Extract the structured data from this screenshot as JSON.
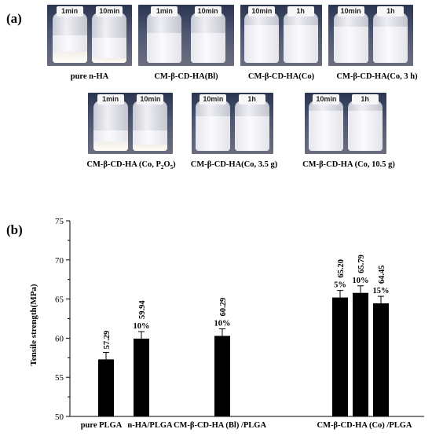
{
  "panel_a": {
    "label": "(a)",
    "photos": [
      {
        "caption": "pure  n-HA",
        "vials": [
          {
            "time": "1min",
            "sediment": 0.22,
            "liquid": 0.55
          },
          {
            "time": "10min",
            "sediment": 0.1,
            "liquid": 0.5
          }
        ]
      },
      {
        "caption": "CM-β-CD-HA(Bl)",
        "vials": [
          {
            "time": "1min",
            "sediment": 0.0,
            "liquid": 0.6
          },
          {
            "time": "10min",
            "sediment": 0.0,
            "liquid": 0.6
          }
        ]
      },
      {
        "caption": "CM-β-CD-HA(Co)",
        "vials": [
          {
            "time": "10min",
            "sediment": 0.0,
            "liquid": 0.75
          },
          {
            "time": "1h",
            "sediment": 0.0,
            "liquid": 0.75
          }
        ]
      },
      {
        "caption": "CM-β-CD-HA(Co, 3 h)",
        "vials": [
          {
            "time": "10min",
            "sediment": 0.0,
            "liquid": 0.72
          },
          {
            "time": "1h",
            "sediment": 0.0,
            "liquid": 0.72
          }
        ]
      },
      {
        "caption_main": "CM-β-CD-HA (Co, P",
        "caption_sub1": "2",
        "caption_mid": "O",
        "caption_sub2": "5",
        "caption_end": ")",
        "vials": [
          {
            "time": "1min",
            "sediment": 0.18,
            "liquid": 0.4
          },
          {
            "time": "10min",
            "sediment": 0.12,
            "liquid": 0.4
          }
        ]
      },
      {
        "caption": "CM-β-CD-HA(Co, 3.5 g)",
        "vials": [
          {
            "time": "10min",
            "sediment": 0.0,
            "liquid": 0.68
          },
          {
            "time": "1h",
            "sediment": 0.0,
            "liquid": 0.68
          }
        ]
      },
      {
        "caption": "CM-β-CD-HA (Co, 10.5 g)",
        "vials": [
          {
            "time": "10min",
            "sediment": 0.0,
            "liquid": 0.8
          },
          {
            "time": "1h",
            "sediment": 0.0,
            "liquid": 0.8
          }
        ]
      }
    ]
  },
  "panel_b": {
    "label": "(b)"
  },
  "chart_data": {
    "type": "bar",
    "ylabel": "Tensile strength(MPa)",
    "ylim": [
      50,
      75
    ],
    "yticks": [
      50,
      55,
      60,
      65,
      70,
      75
    ],
    "groups": [
      "pure PLGA",
      "n-HA/PLGA",
      "CM-β-CD-HA (Bl) /PLGA",
      "CM-β-CD-HA (Co) /PLGA"
    ],
    "bars": [
      {
        "group": 0,
        "value": 57.29,
        "error": 0.9,
        "value_label": "57.29",
        "pct_label": ""
      },
      {
        "group": 1,
        "value": 59.94,
        "error": 0.9,
        "value_label": "59.94",
        "pct_label": "10%"
      },
      {
        "group": 2,
        "value": 60.29,
        "error": 0.9,
        "value_label": "60.29",
        "pct_label": "10%"
      },
      {
        "group": 3,
        "value": 65.2,
        "error": 0.9,
        "value_label": "65.20",
        "pct_label": "5%"
      },
      {
        "group": 3,
        "value": 65.79,
        "error": 0.9,
        "value_label": "65.79",
        "pct_label": "10%"
      },
      {
        "group": 3,
        "value": 64.45,
        "error": 0.9,
        "value_label": "64.45",
        "pct_label": "15%"
      }
    ],
    "bar_color": "#000000"
  }
}
